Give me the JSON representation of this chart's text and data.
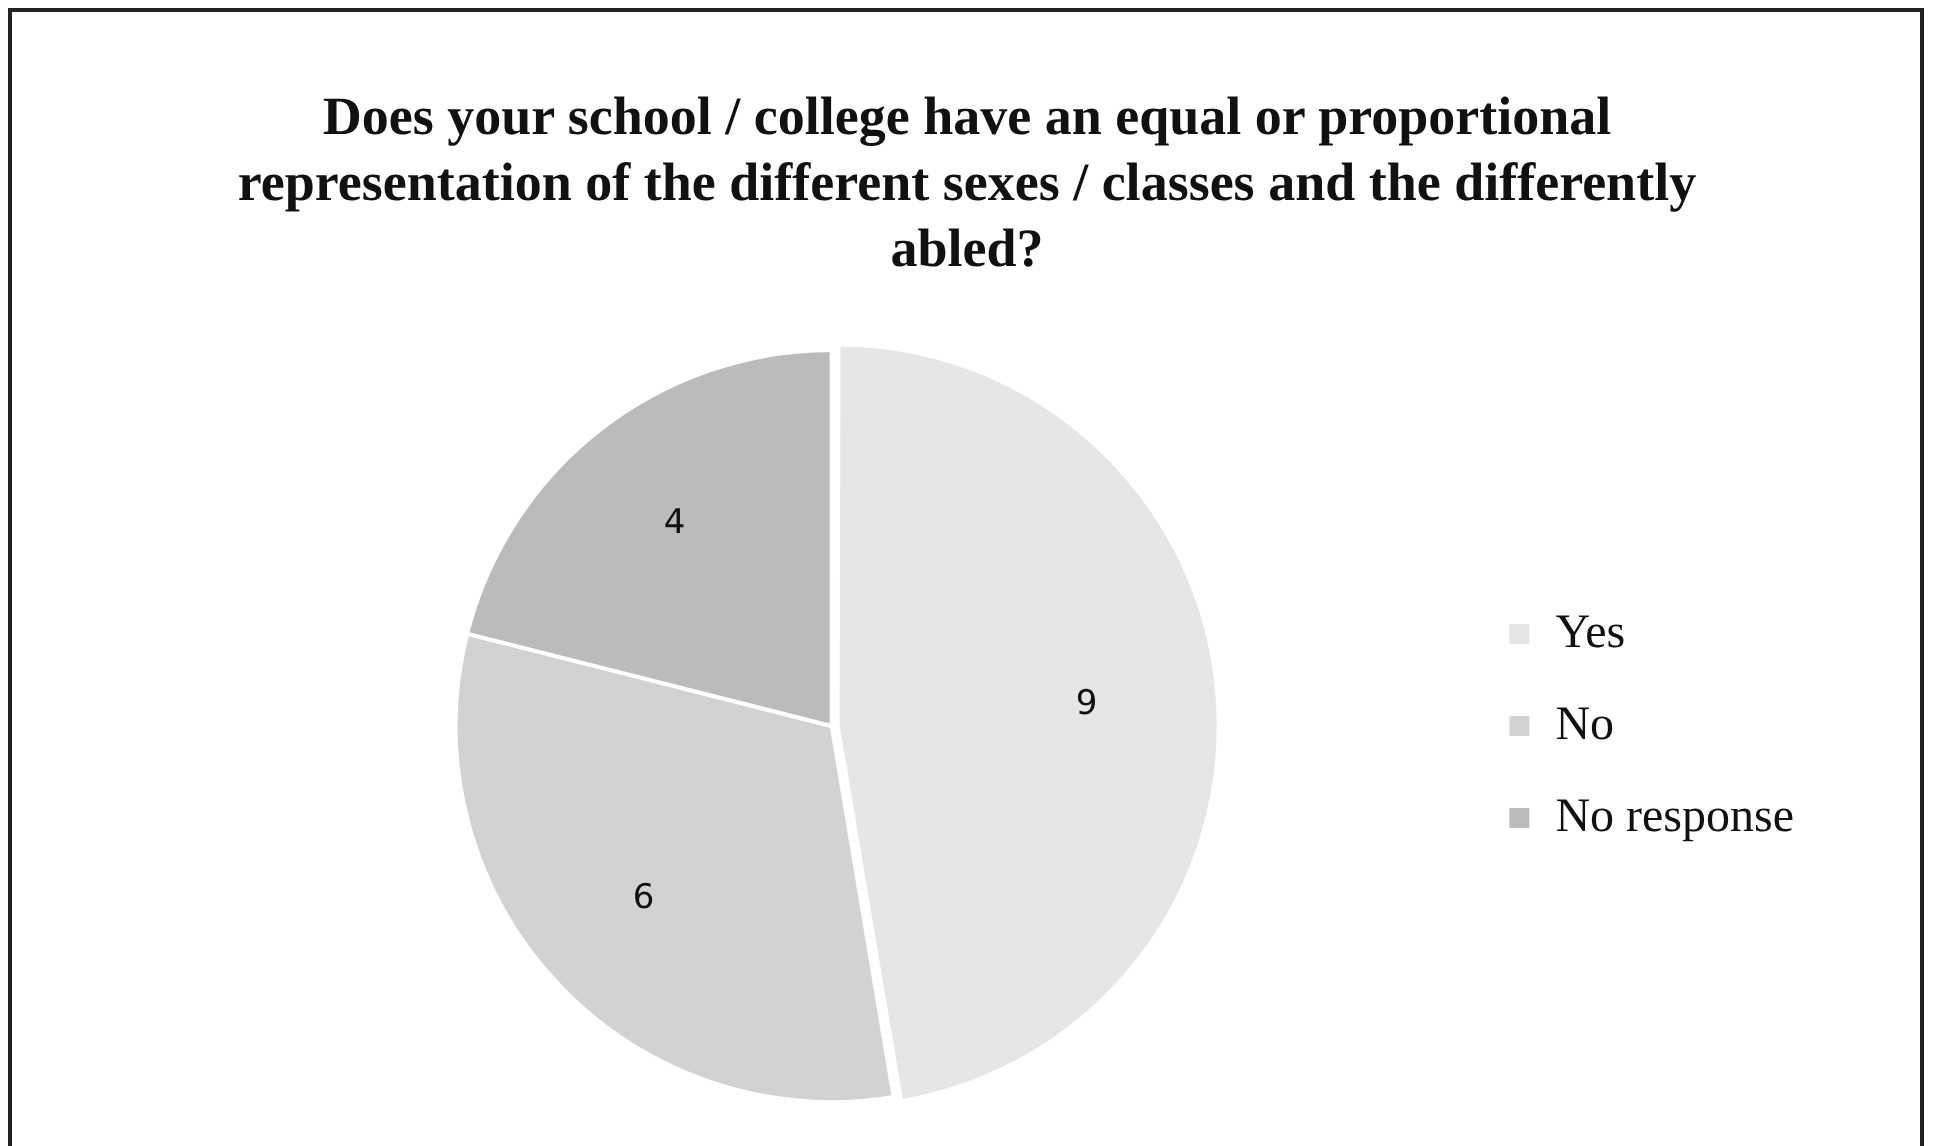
{
  "chart_data": {
    "type": "pie",
    "title": "Does your school / college have an equal or proportional representation of the different sexes / classes and the differently abled?",
    "categories": [
      "Yes",
      "No",
      "No response"
    ],
    "values": [
      9,
      6,
      4
    ],
    "colors": [
      "#e6e6e8",
      "#d2d2d4",
      "#bbbbbd"
    ],
    "data_labels": true,
    "legend": "right"
  }
}
